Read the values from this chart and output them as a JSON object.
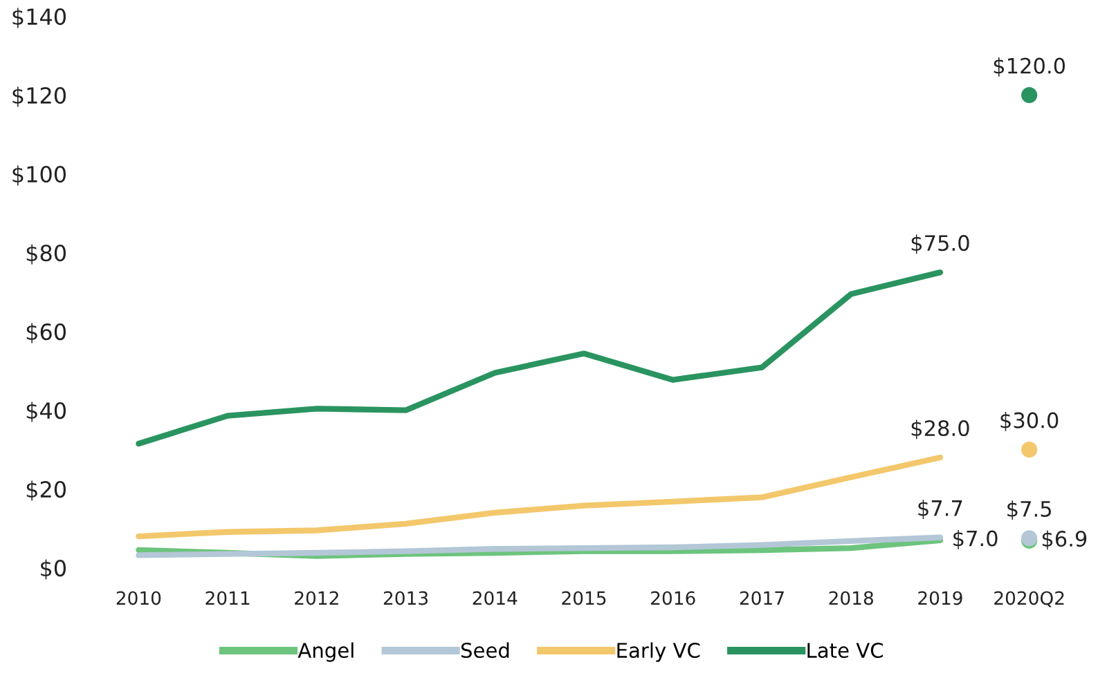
{
  "chart_data": {
    "type": "line",
    "categories": [
      "2010",
      "2011",
      "2012",
      "2013",
      "2014",
      "2015",
      "2016",
      "2017",
      "2018",
      "2019",
      "2020Q2"
    ],
    "series": [
      {
        "name": "Angel",
        "color": "#6cc47d",
        "values": [
          4.5,
          3.8,
          3.0,
          3.5,
          3.8,
          4.2,
          4.2,
          4.5,
          5.0,
          7.0,
          null
        ],
        "value_labels": [
          null,
          null,
          null,
          null,
          null,
          null,
          null,
          null,
          null,
          "$7.0",
          null
        ]
      },
      {
        "name": "Seed",
        "color": "#b3c7d6",
        "values": [
          3.2,
          3.5,
          3.8,
          4.2,
          4.8,
          5.0,
          5.2,
          5.8,
          6.8,
          7.7,
          null
        ],
        "value_labels": [
          null,
          null,
          null,
          null,
          null,
          null,
          null,
          null,
          null,
          "$7.7",
          null
        ]
      },
      {
        "name": "Early VC",
        "color": "#f3c76b",
        "values": [
          8.0,
          9.1,
          9.5,
          11.2,
          14.0,
          15.8,
          16.8,
          17.9,
          23.0,
          28.0,
          null
        ],
        "value_labels": [
          null,
          null,
          null,
          null,
          null,
          null,
          null,
          null,
          null,
          "$28.0",
          null
        ]
      },
      {
        "name": "Late VC",
        "color": "#2a9461",
        "values": [
          31.5,
          38.6,
          40.4,
          40.0,
          49.5,
          54.4,
          47.7,
          50.9,
          69.5,
          75.0,
          null
        ],
        "value_labels": [
          null,
          null,
          null,
          null,
          null,
          null,
          null,
          null,
          null,
          "$75.0",
          null
        ]
      },
      {
        "type": "scatter",
        "marker": "circle",
        "color": "#6cc47d",
        "values": [
          null,
          null,
          null,
          null,
          null,
          null,
          null,
          null,
          null,
          null,
          6.9
        ],
        "value_labels": [
          null,
          null,
          null,
          null,
          null,
          null,
          null,
          null,
          null,
          null,
          "$6.9"
        ]
      },
      {
        "type": "scatter",
        "marker": "circle",
        "color": "#b3c7d6",
        "values": [
          null,
          null,
          null,
          null,
          null,
          null,
          null,
          null,
          null,
          null,
          7.5
        ],
        "value_labels": [
          null,
          null,
          null,
          null,
          null,
          null,
          null,
          null,
          null,
          null,
          "$7.5"
        ]
      },
      {
        "type": "scatter",
        "marker": "circle",
        "color": "#f3c76b",
        "values": [
          null,
          null,
          null,
          null,
          null,
          null,
          null,
          null,
          null,
          null,
          30.0
        ],
        "value_labels": [
          null,
          null,
          null,
          null,
          null,
          null,
          null,
          null,
          null,
          null,
          "$30.0"
        ]
      },
      {
        "type": "scatter",
        "marker": "circle",
        "color": "#2a9461",
        "values": [
          null,
          null,
          null,
          null,
          null,
          null,
          null,
          null,
          null,
          null,
          120.0
        ],
        "value_labels": [
          null,
          null,
          null,
          null,
          null,
          null,
          null,
          null,
          null,
          null,
          "$120.0"
        ]
      }
    ],
    "ylim": [
      0,
      140
    ],
    "yticks": [
      {
        "value": 0,
        "label": "$0"
      },
      {
        "value": 20,
        "label": "$20"
      },
      {
        "value": 40,
        "label": "$40"
      },
      {
        "value": 60,
        "label": "$60"
      },
      {
        "value": 80,
        "label": "$80"
      },
      {
        "value": 100,
        "label": "$100"
      },
      {
        "value": 120,
        "label": "$120"
      },
      {
        "value": 140,
        "label": "$140"
      }
    ],
    "line_style": "solid",
    "legend": "bottom"
  }
}
